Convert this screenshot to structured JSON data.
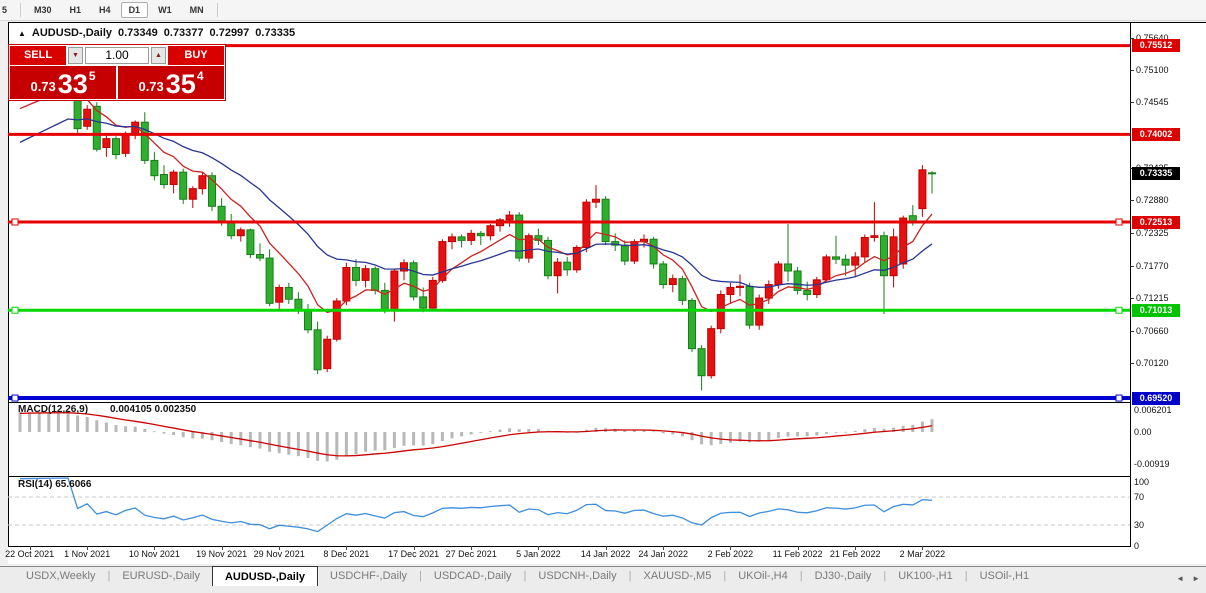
{
  "toolbar": {
    "items": [
      {
        "label": "5",
        "active": false
      },
      {
        "label": "M30",
        "active": false
      },
      {
        "label": "H1",
        "active": false
      },
      {
        "label": "H4",
        "active": false
      },
      {
        "label": "D1",
        "active": true
      },
      {
        "label": "W1",
        "active": false
      },
      {
        "label": "MN",
        "active": false
      }
    ]
  },
  "window_header": {
    "marker": "▲",
    "symbol": "AUDUSD-,Daily",
    "open": "0.73349",
    "high": "0.73377",
    "low": "0.72997",
    "close": "0.73335"
  },
  "trade_panel": {
    "sell_label": "SELL",
    "buy_label": "BUY",
    "volume": "1.00",
    "spin_down": "▼",
    "spin_up": "▲",
    "sell_price": {
      "prefix": "0.73",
      "big": "33",
      "sup": "5"
    },
    "buy_price": {
      "prefix": "0.73",
      "big": "35",
      "sup": "4"
    }
  },
  "price_axis": {
    "ticks": [
      {
        "label": "0.75640",
        "value": 0.7564
      },
      {
        "label": "0.75100",
        "value": 0.751
      },
      {
        "label": "0.74545",
        "value": 0.74545
      },
      {
        "label": "0.73425",
        "value": 0.73425
      },
      {
        "label": "0.72880",
        "value": 0.7288
      },
      {
        "label": "0.72325",
        "value": 0.72325
      },
      {
        "label": "0.71770",
        "value": 0.7177
      },
      {
        "label": "0.71215",
        "value": 0.71215
      },
      {
        "label": "0.70660",
        "value": 0.7066
      },
      {
        "label": "0.70120",
        "value": 0.7012
      }
    ]
  },
  "levels": [
    {
      "label": "0.75512",
      "value": 0.75512,
      "color": "#e60000",
      "tag_bg": "#dd0000",
      "width": 3,
      "handles": false
    },
    {
      "label": "0.74002",
      "value": 0.74002,
      "color": "#e60000",
      "tag_bg": "#dd0000",
      "width": 3,
      "handles": false
    },
    {
      "label": "0.72513",
      "value": 0.72513,
      "color": "#e60000",
      "tag_bg": "#dd0000",
      "width": 3,
      "handles": true
    },
    {
      "label": "0.71013",
      "value": 0.71013,
      "color": "#00d800",
      "tag_bg": "#00c400",
      "width": 3,
      "handles": true
    },
    {
      "label": "0.69520",
      "value": 0.6952,
      "color": "#0000d0",
      "tag_bg": "#0000c8",
      "width": 4,
      "handles": true
    }
  ],
  "current_price": {
    "label": "0.73335",
    "value": 0.73335,
    "tag_bg": "#000000"
  },
  "candle_colors": {
    "bull": "#e61010",
    "bull_border": "#c00000",
    "bear": "#2fae2f",
    "bear_border": "#168016"
  },
  "ma": {
    "fast_period": 8,
    "fast_color": "#d02020",
    "slow_period": 21,
    "slow_color": "#283593"
  },
  "seed_closes": [
    0.7185,
    0.7192,
    0.72,
    0.7212,
    0.7225,
    0.7238,
    0.7248,
    0.7255,
    0.7262,
    0.727,
    0.728,
    0.729,
    0.7298,
    0.7308,
    0.7318,
    0.733,
    0.7322,
    0.7338,
    0.7352,
    0.7365,
    0.7378,
    0.7392,
    0.7405,
    0.742,
    0.7435,
    0.7448,
    0.7455,
    0.7452,
    0.7458,
    0.7462
  ],
  "candles": [
    [
      0.7462,
      0.7472,
      0.746,
      0.7468
    ],
    [
      0.7468,
      0.7478,
      0.7462,
      0.7475
    ],
    [
      0.7475,
      0.7486,
      0.7468,
      0.7482
    ],
    [
      0.7482,
      0.7494,
      0.7476,
      0.749
    ],
    [
      0.749,
      0.7502,
      0.7484,
      0.7498
    ],
    [
      0.7498,
      0.7508,
      0.749,
      0.7505
    ],
    [
      0.7488,
      0.7492,
      0.74,
      0.741
    ],
    [
      0.7414,
      0.745,
      0.7408,
      0.7443
    ],
    [
      0.7448,
      0.7455,
      0.7371,
      0.7375
    ],
    [
      0.7378,
      0.7398,
      0.7362,
      0.7393
    ],
    [
      0.7393,
      0.7397,
      0.7358,
      0.7366
    ],
    [
      0.7368,
      0.7405,
      0.7362,
      0.74
    ],
    [
      0.74,
      0.7424,
      0.7392,
      0.7421
    ],
    [
      0.7421,
      0.7438,
      0.735,
      0.7356
    ],
    [
      0.7356,
      0.737,
      0.7322,
      0.733
    ],
    [
      0.7332,
      0.7348,
      0.7308,
      0.7315
    ],
    [
      0.7315,
      0.734,
      0.73,
      0.7336
    ],
    [
      0.7336,
      0.7342,
      0.7282,
      0.729
    ],
    [
      0.729,
      0.7312,
      0.7275,
      0.7308
    ],
    [
      0.7308,
      0.7335,
      0.7298,
      0.733
    ],
    [
      0.733,
      0.7336,
      0.727,
      0.7278
    ],
    [
      0.7278,
      0.7292,
      0.7245,
      0.7252
    ],
    [
      0.7252,
      0.7265,
      0.7222,
      0.7228
    ],
    [
      0.7228,
      0.7242,
      0.7218,
      0.7238
    ],
    [
      0.7238,
      0.724,
      0.719,
      0.7196
    ],
    [
      0.7196,
      0.7215,
      0.7185,
      0.719
    ],
    [
      0.719,
      0.7205,
      0.7108,
      0.7113
    ],
    [
      0.7115,
      0.7145,
      0.71,
      0.714
    ],
    [
      0.714,
      0.7148,
      0.7112,
      0.712
    ],
    [
      0.712,
      0.7132,
      0.7095,
      0.7102
    ],
    [
      0.7102,
      0.7112,
      0.7062,
      0.7068
    ],
    [
      0.7068,
      0.7082,
      0.6993,
      0.7
    ],
    [
      0.7002,
      0.7058,
      0.6996,
      0.7052
    ],
    [
      0.7052,
      0.7122,
      0.7048,
      0.7117
    ],
    [
      0.7117,
      0.7182,
      0.711,
      0.7174
    ],
    [
      0.7174,
      0.7188,
      0.7142,
      0.7152
    ],
    [
      0.7152,
      0.7178,
      0.714,
      0.7172
    ],
    [
      0.7172,
      0.7176,
      0.7128,
      0.7135
    ],
    [
      0.7135,
      0.7148,
      0.7096,
      0.7103
    ],
    [
      0.7103,
      0.7172,
      0.7082,
      0.7168
    ],
    [
      0.7168,
      0.7188,
      0.7152,
      0.7182
    ],
    [
      0.7182,
      0.7186,
      0.7118,
      0.7124
    ],
    [
      0.7124,
      0.714,
      0.7098,
      0.7105
    ],
    [
      0.7105,
      0.7158,
      0.71,
      0.7152
    ],
    [
      0.7152,
      0.7222,
      0.7148,
      0.7218
    ],
    [
      0.7218,
      0.7232,
      0.7205,
      0.7226
    ],
    [
      0.7226,
      0.723,
      0.7208,
      0.722
    ],
    [
      0.722,
      0.7238,
      0.7212,
      0.7232
    ],
    [
      0.7232,
      0.7236,
      0.7212,
      0.7228
    ],
    [
      0.7228,
      0.7248,
      0.722,
      0.7245
    ],
    [
      0.7245,
      0.7258,
      0.7235,
      0.7255
    ],
    [
      0.7255,
      0.727,
      0.7243,
      0.7263
    ],
    [
      0.7263,
      0.7268,
      0.7184,
      0.719
    ],
    [
      0.719,
      0.7232,
      0.7182,
      0.7228
    ],
    [
      0.7228,
      0.724,
      0.7212,
      0.722
    ],
    [
      0.722,
      0.7226,
      0.7154,
      0.716
    ],
    [
      0.716,
      0.719,
      0.713,
      0.7183
    ],
    [
      0.7183,
      0.7192,
      0.716,
      0.717
    ],
    [
      0.717,
      0.7212,
      0.7165,
      0.7208
    ],
    [
      0.7208,
      0.729,
      0.72,
      0.7285
    ],
    [
      0.7285,
      0.7314,
      0.7275,
      0.729
    ],
    [
      0.729,
      0.7295,
      0.7212,
      0.7218
    ],
    [
      0.7218,
      0.7232,
      0.7202,
      0.7212
    ],
    [
      0.7212,
      0.722,
      0.7178,
      0.7185
    ],
    [
      0.7185,
      0.7222,
      0.718,
      0.7218
    ],
    [
      0.7218,
      0.723,
      0.7208,
      0.7222
    ],
    [
      0.7222,
      0.7226,
      0.7172,
      0.718
    ],
    [
      0.718,
      0.7185,
      0.7138,
      0.7145
    ],
    [
      0.7145,
      0.7162,
      0.7132,
      0.7155
    ],
    [
      0.7155,
      0.716,
      0.711,
      0.7118
    ],
    [
      0.7118,
      0.7122,
      0.703,
      0.7036
    ],
    [
      0.7036,
      0.7042,
      0.6965,
      0.699
    ],
    [
      0.699,
      0.7075,
      0.6985,
      0.707
    ],
    [
      0.707,
      0.7135,
      0.7062,
      0.7128
    ],
    [
      0.7128,
      0.7148,
      0.7112,
      0.714
    ],
    [
      0.714,
      0.7162,
      0.7125,
      0.7142
    ],
    [
      0.7142,
      0.7148,
      0.707,
      0.7076
    ],
    [
      0.7076,
      0.7128,
      0.7068,
      0.7122
    ],
    [
      0.7122,
      0.7152,
      0.7112,
      0.7145
    ],
    [
      0.7145,
      0.7185,
      0.7138,
      0.718
    ],
    [
      0.718,
      0.7248,
      0.715,
      0.7168
    ],
    [
      0.7168,
      0.7175,
      0.7128,
      0.7135
    ],
    [
      0.7135,
      0.715,
      0.7118,
      0.7128
    ],
    [
      0.7128,
      0.7158,
      0.7122,
      0.7153
    ],
    [
      0.7153,
      0.7196,
      0.7148,
      0.7192
    ],
    [
      0.7192,
      0.7228,
      0.718,
      0.7188
    ],
    [
      0.7188,
      0.7196,
      0.716,
      0.7178
    ],
    [
      0.7178,
      0.72,
      0.7158,
      0.7192
    ],
    [
      0.7192,
      0.723,
      0.7182,
      0.7225
    ],
    [
      0.7225,
      0.7285,
      0.7218,
      0.7228
    ],
    [
      0.7228,
      0.7235,
      0.7095,
      0.716
    ],
    [
      0.716,
      0.724,
      0.714,
      0.7226
    ],
    [
      0.718,
      0.7262,
      0.7172,
      0.7258
    ],
    [
      0.7262,
      0.728,
      0.7245,
      0.7252
    ],
    [
      0.7274,
      0.7348,
      0.726,
      0.734
    ],
    [
      0.73349,
      0.73377,
      0.72997,
      0.73335
    ]
  ],
  "macd": {
    "label": "MACD(12,26,9)",
    "values_text": "0.004105 0.002350",
    "hist_color": "#b8b8b8",
    "signal_color": "#cc0000",
    "axis": [
      {
        "label": "0.006201",
        "value": 0.006201
      },
      {
        "label": "0.00",
        "value": 0
      },
      {
        "label": "-0.00919",
        "value": -0.00919
      }
    ]
  },
  "rsi": {
    "label": "RSI(14) 65.6066",
    "color": "#3e8ede",
    "level_values": [
      70,
      30
    ],
    "axis": [
      {
        "label": "100",
        "value": 100
      },
      {
        "label": "70",
        "value": 70
      },
      {
        "label": "30",
        "value": 30
      },
      {
        "label": "0",
        "value": 0
      }
    ]
  },
  "timeline": {
    "ticks": [
      {
        "label": "22 Oct 2021",
        "bar": 1
      },
      {
        "label": "1 Nov 2021",
        "bar": 7
      },
      {
        "label": "10 Nov 2021",
        "bar": 14
      },
      {
        "label": "19 Nov 2021",
        "bar": 21
      },
      {
        "label": "29 Nov 2021",
        "bar": 27
      },
      {
        "label": "8 Dec 2021",
        "bar": 34
      },
      {
        "label": "17 Dec 2021",
        "bar": 41
      },
      {
        "label": "27 Dec 2021",
        "bar": 47
      },
      {
        "label": "5 Jan 2022",
        "bar": 54
      },
      {
        "label": "14 Jan 2022",
        "bar": 61
      },
      {
        "label": "24 Jan 2022",
        "bar": 67
      },
      {
        "label": "2 Feb 2022",
        "bar": 74
      },
      {
        "label": "11 Feb 2022",
        "bar": 81
      },
      {
        "label": "21 Feb 2022",
        "bar": 87
      },
      {
        "label": "2 Mar 2022",
        "bar": 94
      }
    ]
  },
  "tabs": {
    "separator": "|",
    "scroll_left": "◄",
    "scroll_right": "►",
    "items": [
      {
        "label": "USDX,Weekly",
        "active": false
      },
      {
        "label": "EURUSD-,Daily",
        "active": false
      },
      {
        "label": "AUDUSD-,Daily",
        "active": true
      },
      {
        "label": "USDCHF-,Daily",
        "active": false
      },
      {
        "label": "USDCAD-,Daily",
        "active": false
      },
      {
        "label": "USDCNH-,Daily",
        "active": false
      },
      {
        "label": "XAUUSD-,M5",
        "active": false
      },
      {
        "label": "UKOil-,H4",
        "active": false
      },
      {
        "label": "DJ30-,Daily",
        "active": false
      },
      {
        "label": "UK100-,H1",
        "active": false
      },
      {
        "label": "USOil-,H1",
        "active": false
      }
    ]
  }
}
